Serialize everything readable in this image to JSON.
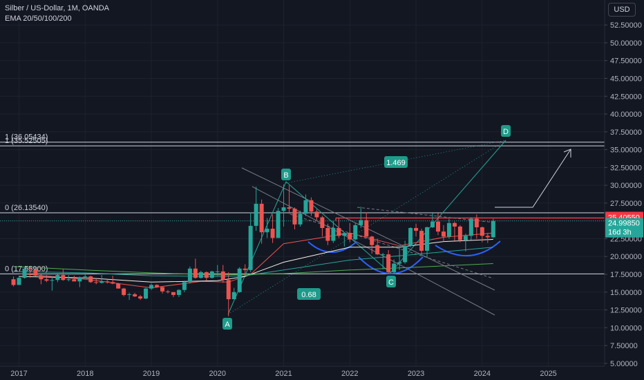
{
  "header": {
    "symbol_line": "Silber / US-Dollar, 1M, OANDA",
    "indicator_line": "EMA 20/50/100/200"
  },
  "currency_button": "USD",
  "price_labels": {
    "red_level": "25.40550",
    "last_price": "24.99850",
    "countdown": "16d 3h"
  },
  "fib_labels": {
    "top_1": "1 (36.05434)",
    "top_2": "1 (35.52505)",
    "mid_0": "0 (26.13540)",
    "low_0": "0 (17.55900)"
  },
  "pattern_labels": [
    "A",
    "B",
    "C",
    "D"
  ],
  "ratio_labels": [
    "1.469",
    "0.68"
  ],
  "colors": {
    "background": "#131722",
    "up_candle": "#26a69a",
    "down_candle": "#ef5350",
    "label_teal": "#1e9b8a",
    "red_level": "#f23645",
    "ema20": "#ef5350",
    "ema50": "#f5f0e6",
    "ema100": "#26a69a",
    "ema200": "#4caf50",
    "arc_blue": "#2962ff"
  },
  "chart_data": {
    "type": "candlestick",
    "x_ticks": [
      "2017",
      "2018",
      "2019",
      "2020",
      "2021",
      "2022",
      "2023",
      "2024",
      "2025"
    ],
    "y_ticks": [
      "52.50000",
      "50.00000",
      "47.50000",
      "45.00000",
      "42.50000",
      "40.00000",
      "37.50000",
      "35.00000",
      "32.50000",
      "30.00000",
      "27.50000",
      "25.00000",
      "22.50000",
      "20.00000",
      "17.50000",
      "15.00000",
      "12.50000",
      "10.00000",
      "7.50000",
      "5.00000"
    ],
    "ylim": [
      4.5,
      53.5
    ],
    "horizontal_levels": [
      36.05434,
      35.52505,
      26.1354,
      17.559
    ],
    "red_level": 25.4055,
    "last_price": 24.9985,
    "pattern_points": {
      "A": {
        "date": "2020-03",
        "value": 11.6
      },
      "B": {
        "date": "2021-01",
        "value": 30.1
      },
      "C": {
        "date": "2022-09",
        "value": 17.6
      },
      "D": {
        "date": "2024-04",
        "value": 36.0
      }
    },
    "candles": [
      {
        "date": "2016-12",
        "open": 16.8,
        "high": 17.2,
        "low": 15.8,
        "close": 16.0
      },
      {
        "date": "2017-01",
        "open": 16.0,
        "high": 17.3,
        "low": 16.0,
        "close": 17.0
      },
      {
        "date": "2017-02",
        "open": 17.0,
        "high": 18.4,
        "low": 16.9,
        "close": 18.3
      },
      {
        "date": "2017-03",
        "open": 18.3,
        "high": 18.4,
        "low": 17.0,
        "close": 18.2
      },
      {
        "date": "2017-04",
        "open": 18.2,
        "high": 18.6,
        "low": 17.2,
        "close": 17.3
      },
      {
        "date": "2017-05",
        "open": 17.3,
        "high": 17.5,
        "low": 16.1,
        "close": 16.8
      },
      {
        "date": "2017-06",
        "open": 16.8,
        "high": 17.4,
        "low": 16.4,
        "close": 16.6
      },
      {
        "date": "2017-07",
        "open": 16.6,
        "high": 17.2,
        "low": 15.2,
        "close": 16.7
      },
      {
        "date": "2017-08",
        "open": 16.7,
        "high": 17.5,
        "low": 16.4,
        "close": 17.4
      },
      {
        "date": "2017-09",
        "open": 17.4,
        "high": 18.2,
        "low": 16.6,
        "close": 16.7
      },
      {
        "date": "2017-10",
        "open": 16.7,
        "high": 17.4,
        "low": 16.5,
        "close": 16.8
      },
      {
        "date": "2017-11",
        "open": 16.8,
        "high": 17.3,
        "low": 16.6,
        "close": 16.5
      },
      {
        "date": "2017-12",
        "open": 16.5,
        "high": 17.2,
        "low": 15.7,
        "close": 17.1
      },
      {
        "date": "2018-01",
        "open": 17.1,
        "high": 17.7,
        "low": 16.9,
        "close": 17.2
      },
      {
        "date": "2018-02",
        "open": 17.2,
        "high": 17.3,
        "low": 16.3,
        "close": 16.4
      },
      {
        "date": "2018-03",
        "open": 16.4,
        "high": 16.9,
        "low": 16.1,
        "close": 16.3
      },
      {
        "date": "2018-04",
        "open": 16.3,
        "high": 17.4,
        "low": 16.2,
        "close": 16.5
      },
      {
        "date": "2018-05",
        "open": 16.5,
        "high": 16.8,
        "low": 16.2,
        "close": 16.4
      },
      {
        "date": "2018-06",
        "open": 16.4,
        "high": 17.3,
        "low": 16.1,
        "close": 16.2
      },
      {
        "date": "2018-07",
        "open": 16.2,
        "high": 16.3,
        "low": 15.5,
        "close": 15.5
      },
      {
        "date": "2018-08",
        "open": 15.5,
        "high": 15.6,
        "low": 14.4,
        "close": 14.6
      },
      {
        "date": "2018-09",
        "open": 14.6,
        "high": 14.9,
        "low": 13.9,
        "close": 14.7
      },
      {
        "date": "2018-10",
        "open": 14.7,
        "high": 14.9,
        "low": 14.3,
        "close": 14.4
      },
      {
        "date": "2018-11",
        "open": 14.4,
        "high": 14.6,
        "low": 13.9,
        "close": 14.1
      },
      {
        "date": "2018-12",
        "open": 14.1,
        "high": 15.6,
        "low": 14.0,
        "close": 15.5
      },
      {
        "date": "2019-01",
        "open": 15.5,
        "high": 16.2,
        "low": 15.3,
        "close": 16.0
      },
      {
        "date": "2019-02",
        "open": 16.0,
        "high": 16.1,
        "low": 15.6,
        "close": 15.7
      },
      {
        "date": "2019-03",
        "open": 15.7,
        "high": 15.8,
        "low": 14.8,
        "close": 15.1
      },
      {
        "date": "2019-04",
        "open": 15.1,
        "high": 15.3,
        "low": 14.8,
        "close": 15.0
      },
      {
        "date": "2019-05",
        "open": 15.0,
        "high": 15.0,
        "low": 14.3,
        "close": 14.6
      },
      {
        "date": "2019-06",
        "open": 14.6,
        "high": 15.4,
        "low": 14.3,
        "close": 15.3
      },
      {
        "date": "2019-07",
        "open": 15.3,
        "high": 16.6,
        "low": 15.0,
        "close": 16.4
      },
      {
        "date": "2019-08",
        "open": 16.4,
        "high": 18.6,
        "low": 16.2,
        "close": 18.3
      },
      {
        "date": "2019-09",
        "open": 18.3,
        "high": 19.7,
        "low": 16.9,
        "close": 17.0
      },
      {
        "date": "2019-10",
        "open": 17.0,
        "high": 18.0,
        "low": 16.9,
        "close": 17.8
      },
      {
        "date": "2019-11",
        "open": 17.8,
        "high": 17.9,
        "low": 16.6,
        "close": 17.0
      },
      {
        "date": "2019-12",
        "open": 17.0,
        "high": 18.0,
        "low": 16.9,
        "close": 17.9
      },
      {
        "date": "2020-01",
        "open": 17.9,
        "high": 18.8,
        "low": 17.3,
        "close": 17.9
      },
      {
        "date": "2020-02",
        "open": 17.9,
        "high": 18.8,
        "low": 16.3,
        "close": 16.7
      },
      {
        "date": "2020-03",
        "open": 16.7,
        "high": 17.8,
        "low": 11.6,
        "close": 14.0
      },
      {
        "date": "2020-04",
        "open": 14.0,
        "high": 15.6,
        "low": 14.0,
        "close": 15.0
      },
      {
        "date": "2020-05",
        "open": 15.0,
        "high": 18.5,
        "low": 14.9,
        "close": 18.3
      },
      {
        "date": "2020-06",
        "open": 18.3,
        "high": 18.9,
        "low": 17.3,
        "close": 18.1
      },
      {
        "date": "2020-07",
        "open": 18.1,
        "high": 26.2,
        "low": 17.8,
        "close": 24.3
      },
      {
        "date": "2020-08",
        "open": 24.3,
        "high": 29.8,
        "low": 23.6,
        "close": 27.4
      },
      {
        "date": "2020-09",
        "open": 27.4,
        "high": 28.0,
        "low": 21.8,
        "close": 23.4
      },
      {
        "date": "2020-10",
        "open": 23.4,
        "high": 25.4,
        "low": 22.6,
        "close": 23.9
      },
      {
        "date": "2020-11",
        "open": 23.9,
        "high": 25.9,
        "low": 21.9,
        "close": 22.6
      },
      {
        "date": "2020-12",
        "open": 22.6,
        "high": 26.8,
        "low": 22.6,
        "close": 26.4
      },
      {
        "date": "2021-01",
        "open": 26.4,
        "high": 30.1,
        "low": 24.2,
        "close": 26.9
      },
      {
        "date": "2021-02",
        "open": 26.9,
        "high": 30.0,
        "low": 26.0,
        "close": 26.7
      },
      {
        "date": "2021-03",
        "open": 26.7,
        "high": 26.9,
        "low": 23.8,
        "close": 24.5
      },
      {
        "date": "2021-04",
        "open": 24.5,
        "high": 26.4,
        "low": 24.2,
        "close": 26.0
      },
      {
        "date": "2021-05",
        "open": 26.0,
        "high": 28.7,
        "low": 25.7,
        "close": 27.9
      },
      {
        "date": "2021-06",
        "open": 27.9,
        "high": 28.3,
        "low": 25.7,
        "close": 26.3
      },
      {
        "date": "2021-07",
        "open": 26.3,
        "high": 26.6,
        "low": 25.1,
        "close": 25.5
      },
      {
        "date": "2021-08",
        "open": 25.5,
        "high": 25.7,
        "low": 22.8,
        "close": 24.0
      },
      {
        "date": "2021-09",
        "open": 24.0,
        "high": 24.6,
        "low": 21.6,
        "close": 22.2
      },
      {
        "date": "2021-10",
        "open": 22.2,
        "high": 25.0,
        "low": 21.9,
        "close": 24.0
      },
      {
        "date": "2021-11",
        "open": 24.0,
        "high": 25.4,
        "low": 22.6,
        "close": 22.9
      },
      {
        "date": "2021-12",
        "open": 22.9,
        "high": 23.4,
        "low": 21.4,
        "close": 23.3
      },
      {
        "date": "2022-01",
        "open": 23.3,
        "high": 24.7,
        "low": 22.0,
        "close": 22.4
      },
      {
        "date": "2022-02",
        "open": 22.4,
        "high": 24.7,
        "low": 22.3,
        "close": 24.4
      },
      {
        "date": "2022-03",
        "open": 24.4,
        "high": 27.0,
        "low": 24.0,
        "close": 25.1
      },
      {
        "date": "2022-04",
        "open": 25.1,
        "high": 26.2,
        "low": 22.8,
        "close": 22.8
      },
      {
        "date": "2022-05",
        "open": 22.8,
        "high": 22.9,
        "low": 20.4,
        "close": 21.6
      },
      {
        "date": "2022-06",
        "open": 21.6,
        "high": 22.5,
        "low": 20.2,
        "close": 20.3
      },
      {
        "date": "2022-07",
        "open": 20.3,
        "high": 20.5,
        "low": 18.2,
        "close": 20.3
      },
      {
        "date": "2022-08",
        "open": 20.3,
        "high": 20.9,
        "low": 17.6,
        "close": 17.8
      },
      {
        "date": "2022-09",
        "open": 17.8,
        "high": 19.6,
        "low": 17.6,
        "close": 19.0
      },
      {
        "date": "2022-10",
        "open": 19.0,
        "high": 21.2,
        "low": 18.1,
        "close": 19.2
      },
      {
        "date": "2022-11",
        "open": 19.2,
        "high": 22.2,
        "low": 19.0,
        "close": 21.5
      },
      {
        "date": "2022-12",
        "open": 21.5,
        "high": 24.1,
        "low": 21.3,
        "close": 24.0
      },
      {
        "date": "2023-01",
        "open": 24.0,
        "high": 24.6,
        "low": 22.8,
        "close": 23.6
      },
      {
        "date": "2023-02",
        "open": 23.6,
        "high": 23.9,
        "low": 20.4,
        "close": 20.8
      },
      {
        "date": "2023-03",
        "open": 20.8,
        "high": 24.2,
        "low": 19.9,
        "close": 24.1
      },
      {
        "date": "2023-04",
        "open": 24.1,
        "high": 26.1,
        "low": 24.0,
        "close": 24.9
      },
      {
        "date": "2023-05",
        "open": 24.9,
        "high": 26.1,
        "low": 23.0,
        "close": 23.5
      },
      {
        "date": "2023-06",
        "open": 23.5,
        "high": 24.4,
        "low": 22.1,
        "close": 22.8
      },
      {
        "date": "2023-07",
        "open": 22.8,
        "high": 25.3,
        "low": 22.5,
        "close": 24.7
      },
      {
        "date": "2023-08",
        "open": 24.7,
        "high": 24.9,
        "low": 22.2,
        "close": 24.2
      },
      {
        "date": "2023-09",
        "open": 24.2,
        "high": 24.4,
        "low": 22.0,
        "close": 22.3
      },
      {
        "date": "2023-10",
        "open": 22.3,
        "high": 23.2,
        "low": 20.7,
        "close": 22.9
      },
      {
        "date": "2023-11",
        "open": 22.9,
        "high": 25.5,
        "low": 22.3,
        "close": 25.3
      },
      {
        "date": "2023-12",
        "open": 25.3,
        "high": 25.9,
        "low": 22.5,
        "close": 24.1
      },
      {
        "date": "2024-01",
        "open": 24.1,
        "high": 24.2,
        "low": 22.0,
        "close": 22.9
      },
      {
        "date": "2024-02",
        "open": 22.9,
        "high": 23.3,
        "low": 21.9,
        "close": 22.7
      },
      {
        "date": "2024-03",
        "open": 22.7,
        "high": 25.3,
        "low": 22.6,
        "close": 24.99
      }
    ],
    "ema": {
      "ema20": [
        [
          "2017-01",
          17.6
        ],
        [
          "2018-01",
          16.8
        ],
        [
          "2019-01",
          15.6
        ],
        [
          "2019-10",
          16.5
        ],
        [
          "2020-03",
          16.4
        ],
        [
          "2020-07",
          17.5
        ],
        [
          "2021-01",
          21.8
        ],
        [
          "2022-01",
          23.3
        ],
        [
          "2022-10",
          21.5
        ],
        [
          "2023-06",
          22.7
        ],
        [
          "2024-03",
          23.3
        ]
      ],
      "ema50": [
        [
          "2017-01",
          17.2
        ],
        [
          "2018-01",
          17.0
        ],
        [
          "2019-01",
          16.4
        ],
        [
          "2020-01",
          16.6
        ],
        [
          "2020-06",
          17.2
        ],
        [
          "2021-01",
          19.2
        ],
        [
          "2022-01",
          21.3
        ],
        [
          "2022-10",
          21.3
        ],
        [
          "2023-06",
          22.1
        ],
        [
          "2024-03",
          22.4
        ]
      ],
      "ema100": [
        [
          "2016-12",
          17.9
        ],
        [
          "2018-01",
          17.7
        ],
        [
          "2019-01",
          17.3
        ],
        [
          "2020-01",
          17.2
        ],
        [
          "2020-06",
          17.3
        ],
        [
          "2021-01",
          18.1
        ],
        [
          "2022-01",
          19.5
        ],
        [
          "2023-01",
          20.3
        ],
        [
          "2024-03",
          21.3
        ]
      ],
      "ema200": [
        [
          "2016-12",
          18.6
        ],
        [
          "2018-01",
          18.1
        ],
        [
          "2019-01",
          17.7
        ],
        [
          "2020-01",
          17.4
        ],
        [
          "2021-01",
          17.6
        ],
        [
          "2022-01",
          18.1
        ],
        [
          "2023-01",
          18.5
        ],
        [
          "2024-03",
          19.0
        ]
      ]
    }
  }
}
